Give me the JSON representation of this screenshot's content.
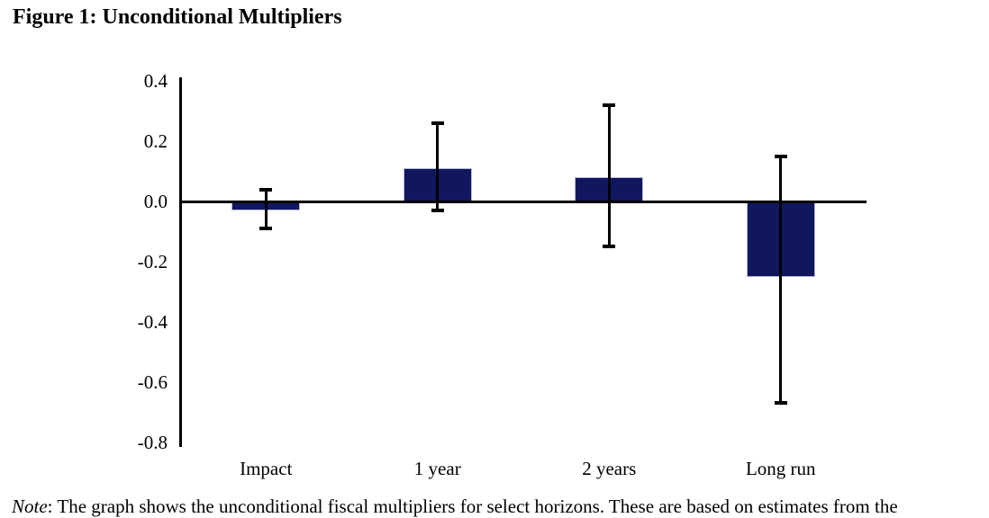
{
  "figure": {
    "title": "Figure 1: Unconditional Multipliers"
  },
  "note": {
    "prefix": "Note",
    "body": ": The graph shows the unconditional fiscal multipliers for select horizons. These are based on estimates from the"
  },
  "chart_data": {
    "type": "bar",
    "title": "Figure 1: Unconditional Multipliers",
    "categories": [
      "Impact",
      "1 year",
      "2 years",
      "Long run"
    ],
    "values": [
      -0.03,
      0.11,
      0.08,
      -0.25
    ],
    "error_low": [
      -0.09,
      -0.03,
      -0.15,
      -0.67
    ],
    "error_high": [
      0.04,
      0.26,
      0.32,
      0.15
    ],
    "ylim": [
      -0.8,
      0.4
    ],
    "yticks": [
      0.4,
      0.2,
      0.0,
      -0.2,
      -0.4,
      -0.6,
      -0.8
    ],
    "ytick_labels": [
      "0.4",
      "0.2",
      "0.0",
      "-0.2",
      "-0.4",
      "-0.6",
      "-0.8"
    ],
    "xlabel": "",
    "ylabel": "",
    "grid": false,
    "legend": false,
    "bar_color": "#10175e",
    "bar_border_color": "#b9bbd9",
    "axis_color": "#000000",
    "error_bar_style": "black capped whiskers"
  }
}
